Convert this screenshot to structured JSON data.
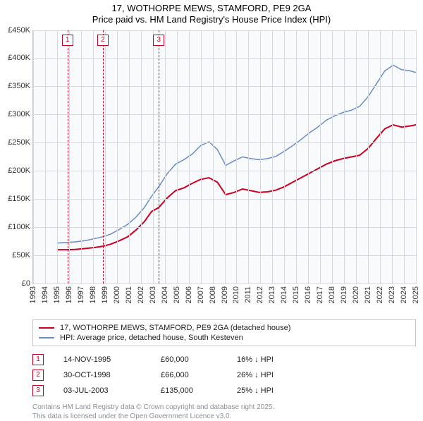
{
  "title": {
    "line1": "17, WOTHORPE MEWS, STAMFORD, PE9 2GA",
    "line2": "Price paid vs. HM Land Registry's House Price Index (HPI)"
  },
  "chart": {
    "type": "line",
    "background_color": "#f9fafc",
    "grid_color": "#d6dae0",
    "axis_color": "#c4c9d0",
    "x": {
      "min": 1993,
      "max": 2025,
      "step": 1
    },
    "y": {
      "min": 0,
      "max": 450000,
      "step": 50000,
      "prefix": "£",
      "labels": [
        "£0",
        "£50K",
        "£100K",
        "£150K",
        "£200K",
        "£250K",
        "£300K",
        "£350K",
        "£400K",
        "£450K"
      ]
    },
    "series": [
      {
        "name": "17, WOTHORPE MEWS, STAMFORD, PE9 2GA (detached house)",
        "color": "#cc0020",
        "width": 2,
        "points": [
          [
            1995.0,
            60000
          ],
          [
            1995.9,
            60000
          ],
          [
            1996.5,
            60500
          ],
          [
            1997.3,
            62000
          ],
          [
            1998.2,
            64000
          ],
          [
            1998.8,
            66000
          ],
          [
            1999.5,
            70000
          ],
          [
            2000.2,
            76000
          ],
          [
            2000.9,
            83000
          ],
          [
            2001.6,
            95000
          ],
          [
            2002.3,
            110000
          ],
          [
            2002.9,
            128000
          ],
          [
            2003.5,
            135000
          ],
          [
            2004.2,
            152000
          ],
          [
            2004.9,
            165000
          ],
          [
            2005.6,
            170000
          ],
          [
            2006.3,
            178000
          ],
          [
            2007.0,
            185000
          ],
          [
            2007.7,
            188000
          ],
          [
            2008.4,
            180000
          ],
          [
            2009.1,
            158000
          ],
          [
            2009.8,
            162000
          ],
          [
            2010.5,
            168000
          ],
          [
            2011.2,
            165000
          ],
          [
            2011.9,
            162000
          ],
          [
            2012.6,
            163000
          ],
          [
            2013.3,
            166000
          ],
          [
            2014.0,
            172000
          ],
          [
            2014.7,
            180000
          ],
          [
            2015.4,
            188000
          ],
          [
            2016.1,
            196000
          ],
          [
            2016.8,
            204000
          ],
          [
            2017.5,
            212000
          ],
          [
            2018.2,
            218000
          ],
          [
            2018.9,
            222000
          ],
          [
            2019.6,
            225000
          ],
          [
            2020.3,
            228000
          ],
          [
            2021.0,
            240000
          ],
          [
            2021.7,
            258000
          ],
          [
            2022.4,
            275000
          ],
          [
            2023.1,
            282000
          ],
          [
            2023.8,
            278000
          ],
          [
            2024.5,
            280000
          ],
          [
            2025.0,
            282000
          ]
        ]
      },
      {
        "name": "HPI: Average price, detached house, South Kesteven",
        "color": "#6a8bc6",
        "width": 1.5,
        "points": [
          [
            1995.0,
            72000
          ],
          [
            1995.9,
            73000
          ],
          [
            1996.5,
            74000
          ],
          [
            1997.3,
            76000
          ],
          [
            1998.2,
            80000
          ],
          [
            1998.8,
            83000
          ],
          [
            1999.5,
            88000
          ],
          [
            2000.2,
            96000
          ],
          [
            2000.9,
            105000
          ],
          [
            2001.6,
            118000
          ],
          [
            2002.3,
            135000
          ],
          [
            2002.9,
            155000
          ],
          [
            2003.5,
            172000
          ],
          [
            2004.2,
            195000
          ],
          [
            2004.9,
            212000
          ],
          [
            2005.6,
            220000
          ],
          [
            2006.3,
            230000
          ],
          [
            2007.0,
            245000
          ],
          [
            2007.7,
            252000
          ],
          [
            2008.4,
            238000
          ],
          [
            2009.1,
            210000
          ],
          [
            2009.8,
            218000
          ],
          [
            2010.5,
            225000
          ],
          [
            2011.2,
            222000
          ],
          [
            2011.9,
            220000
          ],
          [
            2012.6,
            222000
          ],
          [
            2013.3,
            226000
          ],
          [
            2014.0,
            235000
          ],
          [
            2014.7,
            245000
          ],
          [
            2015.4,
            256000
          ],
          [
            2016.1,
            268000
          ],
          [
            2016.8,
            278000
          ],
          [
            2017.5,
            290000
          ],
          [
            2018.2,
            298000
          ],
          [
            2018.9,
            304000
          ],
          [
            2019.6,
            308000
          ],
          [
            2020.3,
            315000
          ],
          [
            2021.0,
            332000
          ],
          [
            2021.7,
            355000
          ],
          [
            2022.4,
            378000
          ],
          [
            2023.1,
            388000
          ],
          [
            2023.8,
            380000
          ],
          [
            2024.5,
            378000
          ],
          [
            2025.0,
            375000
          ]
        ]
      }
    ],
    "markers": [
      {
        "n": "1",
        "x": 1995.87
      },
      {
        "n": "2",
        "x": 1998.83
      },
      {
        "n": "3",
        "x": 2003.5
      }
    ]
  },
  "legend": [
    {
      "color": "#cc0020",
      "label": "17, WOTHORPE MEWS, STAMFORD, PE9 2GA (detached house)"
    },
    {
      "color": "#6a8bc6",
      "label": "HPI: Average price, detached house, South Kesteven"
    }
  ],
  "sales": [
    {
      "n": "1",
      "date": "14-NOV-1995",
      "price": "£60,000",
      "delta": "16% ↓ HPI"
    },
    {
      "n": "2",
      "date": "30-OCT-1998",
      "price": "£66,000",
      "delta": "26% ↓ HPI"
    },
    {
      "n": "3",
      "date": "03-JUL-2003",
      "price": "£135,000",
      "delta": "25% ↓ HPI"
    }
  ],
  "footer": {
    "line1": "Contains HM Land Registry data © Crown copyright and database right 2025.",
    "line2": "This data is licensed under the Open Government Licence v3.0."
  }
}
